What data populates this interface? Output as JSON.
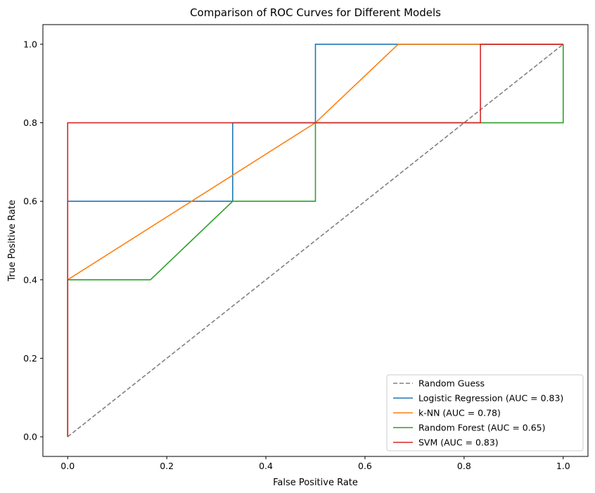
{
  "chart_data": {
    "type": "line",
    "title": "Comparison of ROC Curves for Different Models",
    "xlabel": "False Positive Rate",
    "ylabel": "True Positive Rate",
    "xlim": [
      -0.05,
      1.05
    ],
    "ylim": [
      -0.05,
      1.05
    ],
    "xticks": [
      "0.0",
      "0.2",
      "0.4",
      "0.6",
      "0.8",
      "1.0"
    ],
    "yticks": [
      "0.0",
      "0.2",
      "0.4",
      "0.6",
      "0.8",
      "1.0"
    ],
    "grid": false,
    "legend_position": "lower-right",
    "series": [
      {
        "name": "Random Guess",
        "color": "#808080",
        "dashed": true,
        "x": [
          0,
          1
        ],
        "y": [
          0,
          1
        ]
      },
      {
        "name": "Logistic Regression (AUC = 0.83)",
        "color": "#1f77b4",
        "dashed": false,
        "x": [
          0,
          0,
          0,
          0.333,
          0.333,
          0.5,
          0.5,
          1
        ],
        "y": [
          0,
          0.4,
          0.6,
          0.6,
          0.8,
          0.8,
          1.0,
          1.0
        ]
      },
      {
        "name": "k-NN (AUC = 0.78)",
        "color": "#ff7f0e",
        "dashed": false,
        "x": [
          0,
          0,
          0.5,
          0.667,
          1
        ],
        "y": [
          0,
          0.4,
          0.8,
          1.0,
          1.0
        ]
      },
      {
        "name": "Random Forest (AUC = 0.65)",
        "color": "#2ca02c",
        "dashed": false,
        "x": [
          0,
          0,
          0.167,
          0.333,
          0.5,
          0.5,
          1,
          1
        ],
        "y": [
          0,
          0.4,
          0.4,
          0.6,
          0.6,
          0.8,
          0.8,
          1.0
        ]
      },
      {
        "name": "SVM (AUC = 0.83)",
        "color": "#d62728",
        "dashed": false,
        "x": [
          0,
          0,
          0.833,
          0.833,
          1
        ],
        "y": [
          0,
          0.8,
          0.8,
          1.0,
          1.0
        ]
      }
    ]
  }
}
